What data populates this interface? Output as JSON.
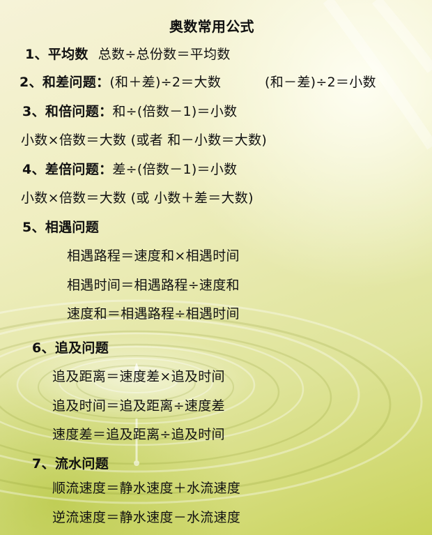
{
  "title": "奥数常用公式",
  "sections": {
    "s1": {
      "heading": "1、平均数",
      "formula": "总数÷总份数＝平均数"
    },
    "s2": {
      "heading": "2、和差问题：",
      "formula_a": "(和＋差)÷2＝大数",
      "formula_b": "(和－差)÷2＝小数"
    },
    "s3": {
      "heading": "3、和倍问题：",
      "formula": "和÷(倍数－1)＝小数",
      "line2": "小数×倍数＝大数 (或者 和－小数＝大数)"
    },
    "s4": {
      "heading": "4、差倍问题：",
      "formula": "差÷(倍数－1)＝小数",
      "line2": "小数×倍数＝大数 (或 小数＋差＝大数)"
    },
    "s5": {
      "heading": "5、相遇问题",
      "items": [
        "相遇路程＝速度和×相遇时间",
        "相遇时间＝相遇路程÷速度和",
        "速度和＝相遇路程÷相遇时间"
      ]
    },
    "s6": {
      "heading": "6、追及问题",
      "items": [
        "追及距离＝速度差×追及时间",
        "追及时间＝追及距离÷速度差",
        "速度差＝追及距离÷追及时间"
      ]
    },
    "s7": {
      "heading": "7、流水问题",
      "items": [
        "顺流速度＝静水速度＋水流速度",
        "逆流速度＝静水速度－水流速度"
      ]
    }
  },
  "colors": {
    "text": "#111111",
    "background_light": "#f6f3d8",
    "background_green": "#c9d35a"
  }
}
